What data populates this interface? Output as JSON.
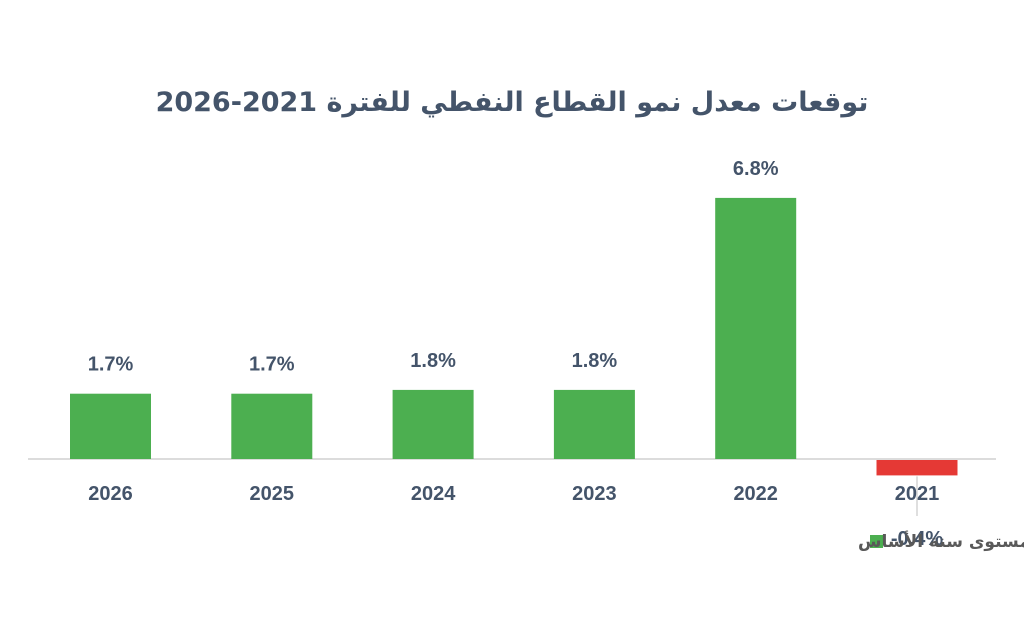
{
  "chart_data": {
    "type": "bar",
    "title": "توقعات معدل نمو القطاع النفطي للفترة 2021-2026",
    "categories": [
      "2021",
      "2022",
      "2023",
      "2024",
      "2025",
      "2026"
    ],
    "series": [
      {
        "name": "مقاساً بالتغير الحقيقي في الكميات مع تثبيت الأسعار عند مستوى سنة الأساس",
        "values": [
          -0.4,
          6.8,
          1.8,
          1.8,
          1.7,
          1.7
        ],
        "labels": [
          "-0.4%",
          "6.8%",
          "1.8%",
          "1.8%",
          "1.7%",
          "1.7%"
        ]
      }
    ],
    "category_order": "right-to-left",
    "colors": {
      "positive": "#4caf50",
      "negative": "#e53935",
      "axis": "#d0d0d0",
      "text": "#44546a"
    },
    "legend_position": "bottom-right",
    "grid": false
  }
}
